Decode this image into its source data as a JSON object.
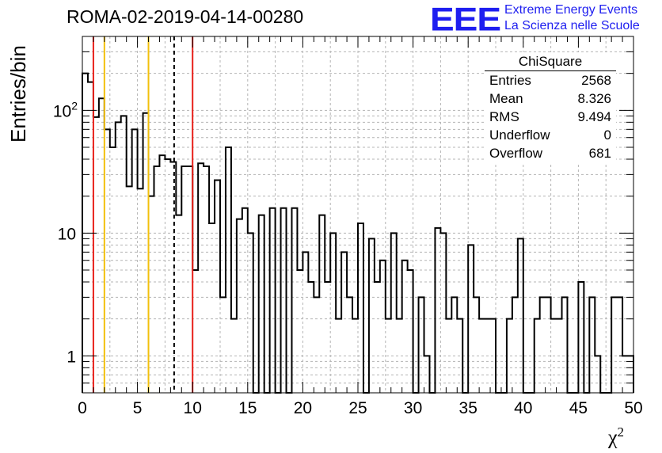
{
  "title": "ROMA-02-2019-04-14-00280",
  "logo": {
    "mark": "EEE",
    "line1": "Extreme Energy Events",
    "line2": "La Scienza nelle Scuole",
    "color": "#1e1ef0"
  },
  "stats": {
    "title": "ChiSquare",
    "rows": [
      {
        "key": "Entries",
        "value": "2568"
      },
      {
        "key": "Mean",
        "value": "8.326"
      },
      {
        "key": "RMS",
        "value": "9.494"
      },
      {
        "key": "Underflow",
        "value": "0"
      },
      {
        "key": "Overflow",
        "value": "681"
      }
    ]
  },
  "chart_data": {
    "type": "histogram",
    "title": "ROMA-02-2019-04-14-00280",
    "xlabel": "χ²",
    "ylabel": "Entries/bin",
    "xlim": [
      0,
      50
    ],
    "ylim": [
      0.5,
      400
    ],
    "yscale": "log",
    "grid": true,
    "bin_width": 0.5,
    "x_ticks": [
      "0",
      "5",
      "10",
      "15",
      "20",
      "25",
      "30",
      "35",
      "40",
      "45",
      "50"
    ],
    "y_ticks": [
      {
        "value": 1,
        "label": "1"
      },
      {
        "value": 10,
        "label": "10"
      },
      {
        "value": 100,
        "label": "10^2"
      }
    ],
    "bin_contents": [
      200,
      170,
      88,
      125,
      70,
      50,
      80,
      90,
      24,
      70,
      23,
      95,
      20,
      35,
      43,
      40,
      38,
      14,
      35,
      35,
      5,
      37,
      35,
      12,
      27,
      3,
      50,
      2,
      13,
      16,
      10,
      0.4,
      14,
      0.4,
      16,
      0.4,
      16,
      0.4,
      16,
      5,
      7,
      4,
      3,
      14,
      4,
      10,
      2,
      7,
      3,
      2,
      12,
      0.4,
      9,
      4,
      6,
      2,
      10,
      2,
      6,
      5,
      0.4,
      3,
      1,
      0.4,
      11,
      10,
      2,
      3,
      2,
      0.4,
      8,
      3,
      2,
      2,
      2,
      0.4,
      0.4,
      2,
      3,
      9,
      0.4,
      0.4,
      2,
      3,
      3,
      2,
      2,
      3,
      0.4,
      0.4,
      4,
      0.4,
      3,
      1,
      0.4,
      0.4,
      3,
      3,
      1,
      1
    ],
    "vertical_lines": [
      {
        "x": 1,
        "color": "#e8201a",
        "style": "solid"
      },
      {
        "x": 2,
        "color": "#f2c00c",
        "style": "solid"
      },
      {
        "x": 6,
        "color": "#f2c00c",
        "style": "solid"
      },
      {
        "x": 8.326,
        "color": "#000000",
        "style": "dashed"
      },
      {
        "x": 10,
        "color": "#e8201a",
        "style": "solid"
      }
    ],
    "legend": "top-right stats box"
  }
}
